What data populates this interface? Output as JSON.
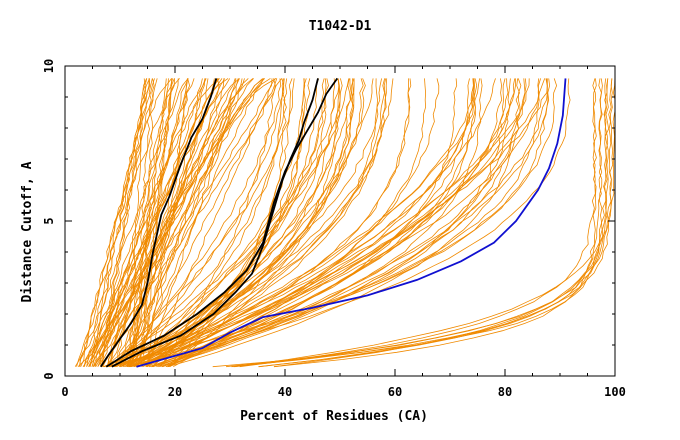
{
  "chart_data": {
    "type": "line",
    "title": "T1042-D1",
    "xlabel": "Percent of Residues (CA)",
    "ylabel": "Distance Cutoff, A",
    "xlim": [
      0,
      100
    ],
    "ylim": [
      0,
      10
    ],
    "x_ticks": [
      0,
      20,
      40,
      60,
      80,
      100
    ],
    "y_ticks": [
      0,
      5,
      10
    ],
    "grid": false,
    "legend": "none",
    "colors": {
      "background_models": "#f08a00",
      "highlight_black": "#000000",
      "highlight_blue": "#1010d0"
    },
    "series_groups": [
      {
        "role": "background",
        "color": "#f08a00",
        "x_at_y_start": [
          2,
          15
        ],
        "x_at_y_top": [
          14,
          40
        ],
        "count": 60,
        "shape": "steep"
      },
      {
        "role": "background",
        "color": "#f08a00",
        "x_at_y_start": [
          7,
          20
        ],
        "x_at_y_top": [
          38,
          92
        ],
        "count": 70,
        "shape": "convex"
      },
      {
        "role": "background",
        "color": "#f08a00",
        "x_at_y_start": [
          25,
          40
        ],
        "x_at_y_top": [
          96,
          100
        ],
        "count": 10,
        "shape": "late"
      }
    ],
    "highlight_series": [
      {
        "color": "#000000",
        "points": [
          [
            6.5,
            0.3
          ],
          [
            8,
            0.7
          ],
          [
            10,
            1.2
          ],
          [
            12,
            1.7
          ],
          [
            14,
            2.3
          ],
          [
            15,
            3.0
          ],
          [
            16,
            4.0
          ],
          [
            17.5,
            5.2
          ],
          [
            19,
            5.8
          ],
          [
            21,
            6.8
          ],
          [
            23,
            7.7
          ],
          [
            25,
            8.3
          ],
          [
            26.5,
            9.0
          ],
          [
            27.5,
            9.6
          ]
        ]
      },
      {
        "color": "#000000",
        "points": [
          [
            7.5,
            0.3
          ],
          [
            12,
            0.8
          ],
          [
            18,
            1.3
          ],
          [
            24,
            2.0
          ],
          [
            29,
            2.7
          ],
          [
            33,
            3.4
          ],
          [
            36,
            4.3
          ],
          [
            38,
            5.6
          ],
          [
            40,
            6.6
          ],
          [
            42,
            7.3
          ],
          [
            44,
            7.9
          ],
          [
            46,
            8.5
          ],
          [
            47.5,
            9.1
          ],
          [
            49.5,
            9.6
          ]
        ]
      },
      {
        "color": "#000000",
        "points": [
          [
            8.5,
            0.3
          ],
          [
            14,
            0.8
          ],
          [
            21,
            1.3
          ],
          [
            27,
            2.0
          ],
          [
            31,
            2.7
          ],
          [
            34,
            3.3
          ],
          [
            36,
            4.2
          ],
          [
            38,
            5.4
          ],
          [
            39.5,
            6.3
          ],
          [
            41,
            7.0
          ],
          [
            42.5,
            7.6
          ],
          [
            43.5,
            8.2
          ],
          [
            45,
            8.9
          ],
          [
            46,
            9.6
          ]
        ]
      },
      {
        "color": "#1010d0",
        "points": [
          [
            13,
            0.3
          ],
          [
            19,
            0.6
          ],
          [
            25,
            0.9
          ],
          [
            30,
            1.4
          ],
          [
            36,
            1.9
          ],
          [
            45,
            2.2
          ],
          [
            55,
            2.6
          ],
          [
            64,
            3.1
          ],
          [
            72,
            3.7
          ],
          [
            78,
            4.3
          ],
          [
            82,
            5.0
          ],
          [
            86,
            6.0
          ],
          [
            88,
            6.7
          ],
          [
            89.5,
            7.5
          ],
          [
            90.5,
            8.4
          ],
          [
            91,
            9.6
          ]
        ]
      }
    ]
  }
}
